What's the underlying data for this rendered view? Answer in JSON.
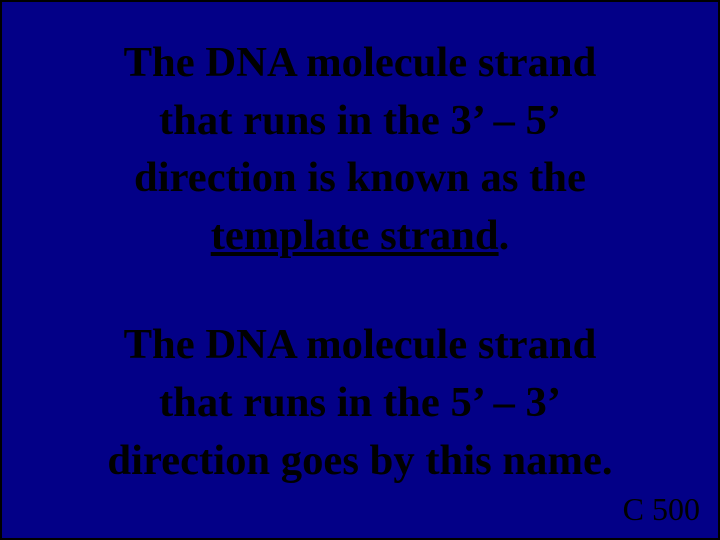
{
  "slide": {
    "background_color": "#030087",
    "border_color": "#000000",
    "border_width": 2,
    "text_color": "#000000",
    "font_family": "Times New Roman",
    "font_size_pt": 32,
    "footer_font_size_pt": 24
  },
  "para1": {
    "line1": "The DNA molecule strand",
    "line2": "that runs in the 3’ – 5’",
    "line3": "direction is known as the",
    "line4_underlined": "template strand",
    "line4_after": "."
  },
  "para2": {
    "line1": "The DNA molecule strand",
    "line2": "that runs in the 5’ – 3’",
    "line3": "direction goes by this name."
  },
  "footer": {
    "label": "C 500"
  }
}
